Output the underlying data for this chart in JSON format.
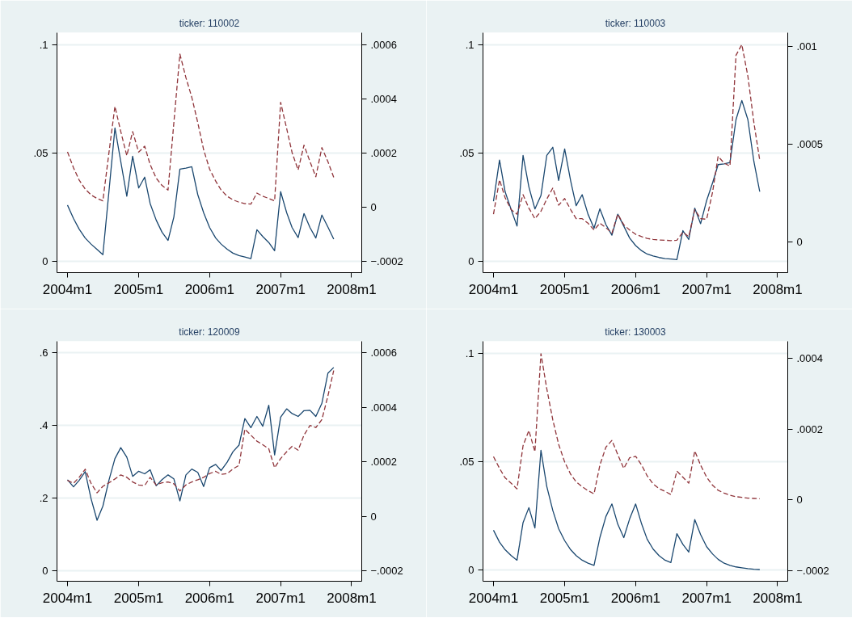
{
  "chart_data": [
    {
      "type": "line",
      "title": "ticker: 110002",
      "x": [
        "2004-01",
        "2004-02",
        "2004-03",
        "2004-04",
        "2004-05",
        "2004-06",
        "2004-07",
        "2004-08",
        "2004-09",
        "2004-10",
        "2004-11",
        "2004-12",
        "2005-01",
        "2005-02",
        "2005-03",
        "2005-04",
        "2005-05",
        "2005-06",
        "2005-07",
        "2005-08",
        "2005-09",
        "2005-10",
        "2005-11",
        "2005-12",
        "2006-01",
        "2006-02",
        "2006-03",
        "2006-04",
        "2006-05",
        "2006-06",
        "2006-07",
        "2006-08",
        "2006-09",
        "2006-10",
        "2006-11",
        "2006-12",
        "2007-01",
        "2007-02",
        "2007-03",
        "2007-04",
        "2007-05",
        "2007-06",
        "2007-07",
        "2007-08",
        "2007-09",
        "2007-10"
      ],
      "xlim": [
        "2003-11-08",
        "2008-02-22"
      ],
      "xticks": [
        {
          "value": "2004-01",
          "label": "2004m1"
        },
        {
          "value": "2005-01",
          "label": "2005m1"
        },
        {
          "value": "2006-01",
          "label": "2006m1"
        },
        {
          "value": "2007-01",
          "label": "2007m1"
        },
        {
          "value": "2008-01",
          "label": "2008m1"
        }
      ],
      "ylim": [
        -0.0053,
        0.1055
      ],
      "yticks": [
        0,
        {
          "value": 0.05,
          "label": ".05"
        },
        {
          "value": 0.1,
          "label": ".1"
        }
      ],
      "y2lim": [
        -0.000242,
        0.000644
      ],
      "y2ticks": [
        {
          "value": -0.0002,
          "label": "−.0002"
        },
        0,
        {
          "value": 0.0002,
          "label": ".0002"
        },
        {
          "value": 0.0004,
          "label": ".0004"
        },
        {
          "value": 0.0006,
          "label": ".0006"
        }
      ],
      "grid": "y",
      "series": [
        {
          "color": "#1a476f",
          "line_style": "solid",
          "values": [
            0.0259,
            0.0197,
            0.0148,
            0.0107,
            0.0079,
            0.0054,
            0.003,
            0.032,
            0.0615,
            0.046,
            0.03,
            0.0485,
            0.0338,
            0.0388,
            0.0266,
            0.019,
            0.0134,
            0.0096,
            0.0204,
            0.0425,
            0.043,
            0.0436,
            0.0307,
            0.0224,
            0.0155,
            0.0107,
            0.0079,
            0.0055,
            0.0037,
            0.0026,
            0.0019,
            0.0012,
            0.0145,
            0.0114,
            0.0086,
            0.0048,
            0.0321,
            0.0224,
            0.0155,
            0.0109,
            0.022,
            0.0155,
            0.0107,
            0.0213,
            0.0158,
            0.0102
          ]
        },
        {
          "color": "#90353b",
          "line_style": "dashed",
          "axis": "y2",
          "values": [
            0.000204,
            0.000145,
            0.0001,
            6.7e-05,
            4.5e-05,
            3.2e-05,
            2.3e-05,
            0.0002,
            0.000372,
            0.000279,
            0.00019,
            0.000279,
            0.000203,
            0.000225,
            0.000157,
            0.000107,
            8e-05,
            6.3e-05,
            0.000312,
            0.000565,
            0.000478,
            0.000406,
            0.000312,
            0.000212,
            0.00014,
            9.6e-05,
            6.3e-05,
            4e-05,
            2.7e-05,
            1.8e-05,
            1.3e-05,
            1.1e-05,
            5.2e-05,
            4e-05,
            3.2e-05,
            2.3e-05,
            0.000387,
            0.00029,
            0.000201,
            0.000137,
            0.000229,
            0.000168,
            0.000112,
            0.00022,
            0.000168,
            0.00011
          ]
        }
      ]
    },
    {
      "type": "line",
      "title": "ticker: 110003",
      "x": [
        "2004-01",
        "2004-02",
        "2004-03",
        "2004-04",
        "2004-05",
        "2004-06",
        "2004-07",
        "2004-08",
        "2004-09",
        "2004-10",
        "2004-11",
        "2004-12",
        "2005-01",
        "2005-02",
        "2005-03",
        "2005-04",
        "2005-05",
        "2005-06",
        "2005-07",
        "2005-08",
        "2005-09",
        "2005-10",
        "2005-11",
        "2005-12",
        "2006-01",
        "2006-02",
        "2006-03",
        "2006-04",
        "2006-05",
        "2006-06",
        "2006-07",
        "2006-08",
        "2006-09",
        "2006-10",
        "2006-11",
        "2006-12",
        "2007-01",
        "2007-02",
        "2007-03",
        "2007-04",
        "2007-05",
        "2007-06",
        "2007-07",
        "2007-08",
        "2007-09",
        "2007-10"
      ],
      "xlim": [
        "2003-11-08",
        "2008-02-22"
      ],
      "xticks": [
        {
          "value": "2004-01",
          "label": "2004m1"
        },
        {
          "value": "2005-01",
          "label": "2005m1"
        },
        {
          "value": "2006-01",
          "label": "2006m1"
        },
        {
          "value": "2007-01",
          "label": "2007m1"
        },
        {
          "value": "2008-01",
          "label": "2008m1"
        }
      ],
      "ylim": [
        -0.0053,
        0.1055
      ],
      "yticks": [
        0,
        {
          "value": 0.05,
          "label": ".05"
        },
        {
          "value": 0.1,
          "label": ".1"
        }
      ],
      "y2lim": [
        -0.000158,
        0.001069
      ],
      "y2ticks": [
        0,
        {
          "value": 0.0005,
          "label": ".0005"
        },
        {
          "value": 0.001,
          "label": ".001"
        }
      ],
      "grid": "y",
      "series": [
        {
          "color": "#1a476f",
          "line_style": "solid",
          "values": [
            0.0277,
            0.0467,
            0.032,
            0.0238,
            0.0162,
            0.0488,
            0.0343,
            0.0241,
            0.0303,
            0.0488,
            0.0526,
            0.0373,
            0.0518,
            0.037,
            0.0256,
            0.0307,
            0.0217,
            0.0152,
            0.0242,
            0.0169,
            0.012,
            0.0217,
            0.0162,
            0.0107,
            0.0072,
            0.0048,
            0.0033,
            0.0024,
            0.0017,
            0.0012,
            0.001,
            0.0007,
            0.0141,
            0.01,
            0.0245,
            0.0173,
            0.028,
            0.0363,
            0.0446,
            0.0449,
            0.0456,
            0.0654,
            0.0742,
            0.0654,
            0.046,
            0.0321
          ]
        },
        {
          "color": "#90353b",
          "line_style": "dashed",
          "axis": "y2",
          "values": [
            0.000141,
            0.000317,
            0.000225,
            0.000164,
            0.000141,
            0.000241,
            0.000172,
            0.000118,
            0.000156,
            0.000218,
            0.000275,
            0.000187,
            0.000221,
            0.000164,
            0.000118,
            0.000118,
            9.5e-05,
            6e-05,
            9.5e-05,
            7.2e-05,
            4.4e-05,
            0.000141,
            8.7e-05,
            6e-05,
            3.8e-05,
            2.6e-05,
            1.7e-05,
            1.2e-05,
            9e-06,
            8e-06,
            6e-06,
            8e-06,
            4.9e-05,
            2.6e-05,
            0.000164,
            0.000118,
            0.000115,
            0.000256,
            0.000437,
            0.000402,
            0.000387,
            0.000954,
            0.001008,
            0.000847,
            0.000609,
            0.000417
          ]
        }
      ]
    },
    {
      "type": "line",
      "title": "ticker: 120009",
      "x": [
        "2004-01",
        "2004-02",
        "2004-03",
        "2004-04",
        "2004-05",
        "2004-06",
        "2004-07",
        "2004-08",
        "2004-09",
        "2004-10",
        "2004-11",
        "2004-12",
        "2005-01",
        "2005-02",
        "2005-03",
        "2005-04",
        "2005-05",
        "2005-06",
        "2005-07",
        "2005-08",
        "2005-09",
        "2005-10",
        "2005-11",
        "2005-12",
        "2006-01",
        "2006-02",
        "2006-03",
        "2006-04",
        "2006-05",
        "2006-06",
        "2006-07",
        "2006-08",
        "2006-09",
        "2006-10",
        "2006-11",
        "2006-12",
        "2007-01",
        "2007-02",
        "2007-03",
        "2007-04",
        "2007-05",
        "2007-06",
        "2007-07",
        "2007-08",
        "2007-09",
        "2007-10"
      ],
      "xlim": [
        "2003-11-08",
        "2008-02-22"
      ],
      "xticks": [
        {
          "value": "2004-01",
          "label": "2004m1"
        },
        {
          "value": "2005-01",
          "label": "2005m1"
        },
        {
          "value": "2006-01",
          "label": "2006m1"
        },
        {
          "value": "2007-01",
          "label": "2007m1"
        },
        {
          "value": "2008-01",
          "label": "2008m1"
        }
      ],
      "ylim": [
        -0.029,
        0.632
      ],
      "yticks": [
        0,
        {
          "value": 0.2,
          "label": ".2"
        },
        {
          "value": 0.4,
          "label": ".4"
        },
        {
          "value": 0.6,
          "label": ".6"
        }
      ],
      "y2lim": [
        -0.000239,
        0.000643
      ],
      "y2ticks": [
        {
          "value": -0.0002,
          "label": "−.0002"
        },
        0,
        {
          "value": 0.0002,
          "label": ".0002"
        },
        {
          "value": 0.0004,
          "label": ".0004"
        },
        {
          "value": 0.0006,
          "label": ".0006"
        }
      ],
      "grid": "y",
      "series": [
        {
          "color": "#1a476f",
          "line_style": "solid",
          "values": [
            0.2506,
            0.231,
            0.249,
            0.273,
            0.199,
            0.139,
            0.178,
            0.249,
            0.309,
            0.339,
            0.313,
            0.26,
            0.274,
            0.267,
            0.278,
            0.234,
            0.251,
            0.264,
            0.253,
            0.192,
            0.264,
            0.28,
            0.271,
            0.232,
            0.284,
            0.293,
            0.276,
            0.299,
            0.328,
            0.346,
            0.419,
            0.394,
            0.425,
            0.398,
            0.456,
            0.319,
            0.423,
            0.446,
            0.433,
            0.425,
            0.441,
            0.442,
            0.425,
            0.461,
            0.544,
            0.56
          ]
        },
        {
          "color": "#90353b",
          "line_style": "dashed",
          "axis": "y2",
          "values": [
            0.000132,
            0.000121,
            0.000143,
            0.000173,
            0.000121,
            8.6e-05,
            0.00011,
            0.000123,
            0.000137,
            0.000152,
            0.000143,
            0.000126,
            0.000115,
            0.000113,
            0.000143,
            0.000115,
            0.000123,
            0.000126,
            0.000119,
            9.3e-05,
            0.000115,
            0.000126,
            0.000134,
            0.000143,
            0.000157,
            0.000165,
            0.000154,
            0.000157,
            0.000174,
            0.000187,
            0.00032,
            0.000298,
            0.000276,
            0.000263,
            0.000248,
            0.000178,
            0.000212,
            0.000237,
            0.000257,
            0.000243,
            0.000298,
            0.000334,
            0.000326,
            0.000355,
            0.000442,
            0.000536
          ]
        }
      ]
    },
    {
      "type": "line",
      "title": "ticker: 130003",
      "x": [
        "2004-01",
        "2004-02",
        "2004-03",
        "2004-04",
        "2004-05",
        "2004-06",
        "2004-07",
        "2004-08",
        "2004-09",
        "2004-10",
        "2004-11",
        "2004-12",
        "2005-01",
        "2005-02",
        "2005-03",
        "2005-04",
        "2005-05",
        "2005-06",
        "2005-07",
        "2005-08",
        "2005-09",
        "2005-10",
        "2005-11",
        "2005-12",
        "2006-01",
        "2006-02",
        "2006-03",
        "2006-04",
        "2006-05",
        "2006-06",
        "2006-07",
        "2006-08",
        "2006-09",
        "2006-10",
        "2006-11",
        "2006-12",
        "2007-01",
        "2007-02",
        "2007-03",
        "2007-04",
        "2007-05",
        "2007-06",
        "2007-07",
        "2007-08",
        "2007-09",
        "2007-10"
      ],
      "xlim": [
        "2003-11-08",
        "2008-02-22"
      ],
      "xticks": [
        {
          "value": "2004-01",
          "label": "2004m1"
        },
        {
          "value": "2005-01",
          "label": "2005m1"
        },
        {
          "value": "2006-01",
          "label": "2006m1"
        },
        {
          "value": "2007-01",
          "label": "2007m1"
        },
        {
          "value": "2008-01",
          "label": "2008m1"
        }
      ],
      "ylim": [
        -0.0051,
        0.1054
      ],
      "yticks": [
        0,
        {
          "value": 0.05,
          "label": ".05"
        },
        {
          "value": 0.1,
          "label": ".1"
        }
      ],
      "y2lim": [
        -0.00023,
        0.000448
      ],
      "y2ticks": [
        {
          "value": -0.0002,
          "label": "−.0002"
        },
        0,
        {
          "value": 0.0002,
          "label": ".0002"
        },
        {
          "value": 0.0004,
          "label": ".0004"
        }
      ],
      "grid": "y",
      "series": [
        {
          "color": "#1a476f",
          "line_style": "solid",
          "values": [
            0.0184,
            0.0129,
            0.0094,
            0.0067,
            0.0046,
            0.0219,
            0.0288,
            0.0194,
            0.0552,
            0.0386,
            0.0275,
            0.0191,
            0.0136,
            0.0094,
            0.0067,
            0.0046,
            0.0032,
            0.0022,
            0.015,
            0.0247,
            0.0305,
            0.0212,
            0.015,
            0.0236,
            0.0305,
            0.0212,
            0.0143,
            0.0097,
            0.0067,
            0.0046,
            0.0035,
            0.0168,
            0.0119,
            0.0083,
            0.0233,
            0.0164,
            0.0108,
            0.0074,
            0.005,
            0.0032,
            0.0022,
            0.0015,
            0.0011,
            0.0007,
            0.0004,
            0.0003
          ]
        },
        {
          "color": "#90353b",
          "line_style": "dashed",
          "axis": "y2",
          "values": [
            0.000122,
            8.9e-05,
            6.2e-05,
            4.7e-05,
            3.1e-05,
            0.000153,
            0.000196,
            0.000136,
            0.000413,
            0.000314,
            0.000226,
            0.000157,
            0.000107,
            7.2e-05,
            5.1e-05,
            3.7e-05,
            2.6e-05,
            1.7e-05,
            9.8e-05,
            0.000149,
            0.000168,
            0.000128,
            8.9e-05,
            0.000119,
            0.000123,
            9.8e-05,
            6.8e-05,
            4.5e-05,
            3.2e-05,
            2.4e-05,
            1.5e-05,
            8.1e-05,
            6.4e-05,
            4.7e-05,
            0.000138,
            9.8e-05,
            6.4e-05,
            4.1e-05,
            2.7e-05,
            1.9e-05,
            1.3e-05,
            9e-06,
            7e-06,
            5e-06,
            4e-06,
            3e-06
          ]
        }
      ]
    }
  ]
}
